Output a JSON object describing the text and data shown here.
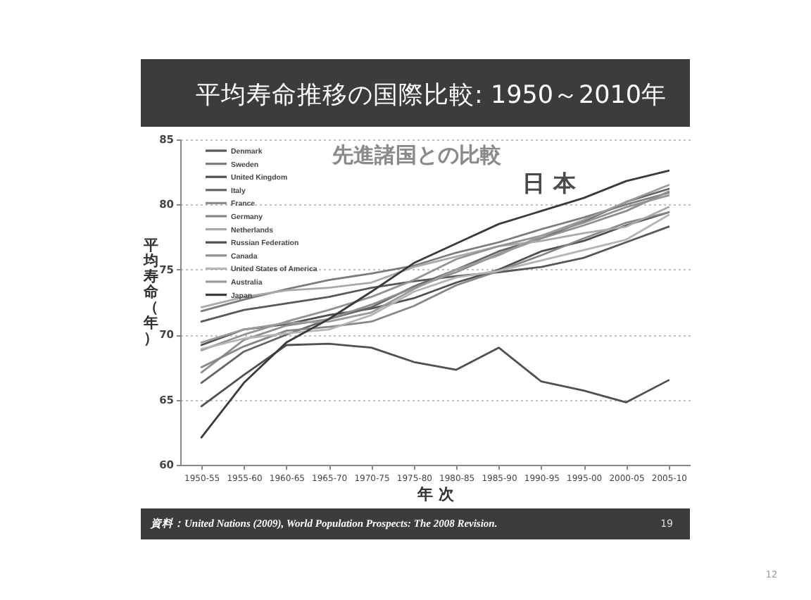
{
  "chart_data": {
    "type": "line",
    "title": "平均寿命推移の国際比較: 1950～2010年",
    "subtitle": "先進諸国との比較",
    "xlabel": "年 次",
    "ylabel": "平均寿命（年）",
    "categories": [
      "1950-55",
      "1955-60",
      "1960-65",
      "1965-70",
      "1970-75",
      "1975-80",
      "1980-85",
      "1985-90",
      "1990-95",
      "1995-00",
      "2000-05",
      "2005-10"
    ],
    "series": [
      {
        "name": "Denmark",
        "color": "#585858",
        "values": [
          71.0,
          71.9,
          72.4,
          72.9,
          73.6,
          74.1,
          74.5,
          74.8,
          75.2,
          75.9,
          77.1,
          78.3
        ]
      },
      {
        "name": "Sweden",
        "color": "#7c7c7c",
        "values": [
          71.8,
          72.7,
          73.5,
          74.2,
          74.7,
          75.3,
          76.3,
          77.1,
          78.1,
          79.0,
          80.0,
          80.9
        ]
      },
      {
        "name": "United Kingdom",
        "color": "#4f4f4f",
        "values": [
          69.2,
          70.4,
          70.8,
          71.5,
          72.0,
          72.8,
          74.0,
          75.0,
          76.4,
          77.2,
          78.4,
          79.4
        ]
      },
      {
        "name": "Italy",
        "color": "#646464",
        "values": [
          66.3,
          68.7,
          70.0,
          71.2,
          72.1,
          73.7,
          75.0,
          76.4,
          77.4,
          78.7,
          80.2,
          81.2
        ]
      },
      {
        "name": "France",
        "color": "#8e8e8e",
        "values": [
          67.1,
          69.6,
          70.7,
          71.2,
          72.3,
          73.6,
          74.8,
          76.2,
          77.4,
          78.4,
          79.5,
          81.0
        ]
      },
      {
        "name": "Germany",
        "color": "#868686",
        "values": [
          67.5,
          69.1,
          70.3,
          70.6,
          71.0,
          72.2,
          73.8,
          74.9,
          76.1,
          77.4,
          78.6,
          79.4
        ]
      },
      {
        "name": "Netherlands",
        "color": "#a9a9a9",
        "values": [
          72.1,
          72.9,
          73.4,
          73.6,
          74.0,
          75.2,
          76.0,
          76.8,
          77.2,
          77.8,
          78.3,
          79.8
        ]
      },
      {
        "name": "Russian Federation",
        "color": "#505050",
        "values": [
          64.5,
          66.9,
          69.2,
          69.3,
          69.0,
          67.9,
          67.3,
          69.0,
          66.4,
          65.7,
          64.8,
          66.5
        ]
      },
      {
        "name": "Canada",
        "color": "#939393",
        "values": [
          68.8,
          70.0,
          71.0,
          71.9,
          72.9,
          74.2,
          75.8,
          76.8,
          77.6,
          78.6,
          79.8,
          80.7
        ]
      },
      {
        "name": "United States of America",
        "color": "#b4b4b4",
        "values": [
          68.9,
          69.7,
          70.1,
          70.4,
          71.5,
          73.3,
          74.4,
          74.9,
          75.7,
          76.5,
          77.3,
          79.2
        ]
      },
      {
        "name": "Australia",
        "color": "#9b9b9b",
        "values": [
          69.4,
          70.4,
          70.9,
          71.0,
          71.7,
          73.5,
          75.0,
          76.1,
          77.6,
          78.8,
          80.2,
          81.5
        ]
      },
      {
        "name": "Japan",
        "color": "#3a3a3a",
        "values": [
          62.1,
          66.3,
          69.4,
          71.2,
          73.3,
          75.5,
          77.0,
          78.5,
          79.5,
          80.5,
          81.8,
          82.6
        ]
      }
    ],
    "ylim": [
      60,
      85
    ],
    "yticks": [
      60,
      65,
      70,
      75,
      80,
      85
    ],
    "grid": "y",
    "legend": "top left",
    "annotations": [
      "日 本",
      "資料：United Nations (2009), World Population Prospects: The 2008 Revision.",
      "19",
      "12"
    ]
  }
}
